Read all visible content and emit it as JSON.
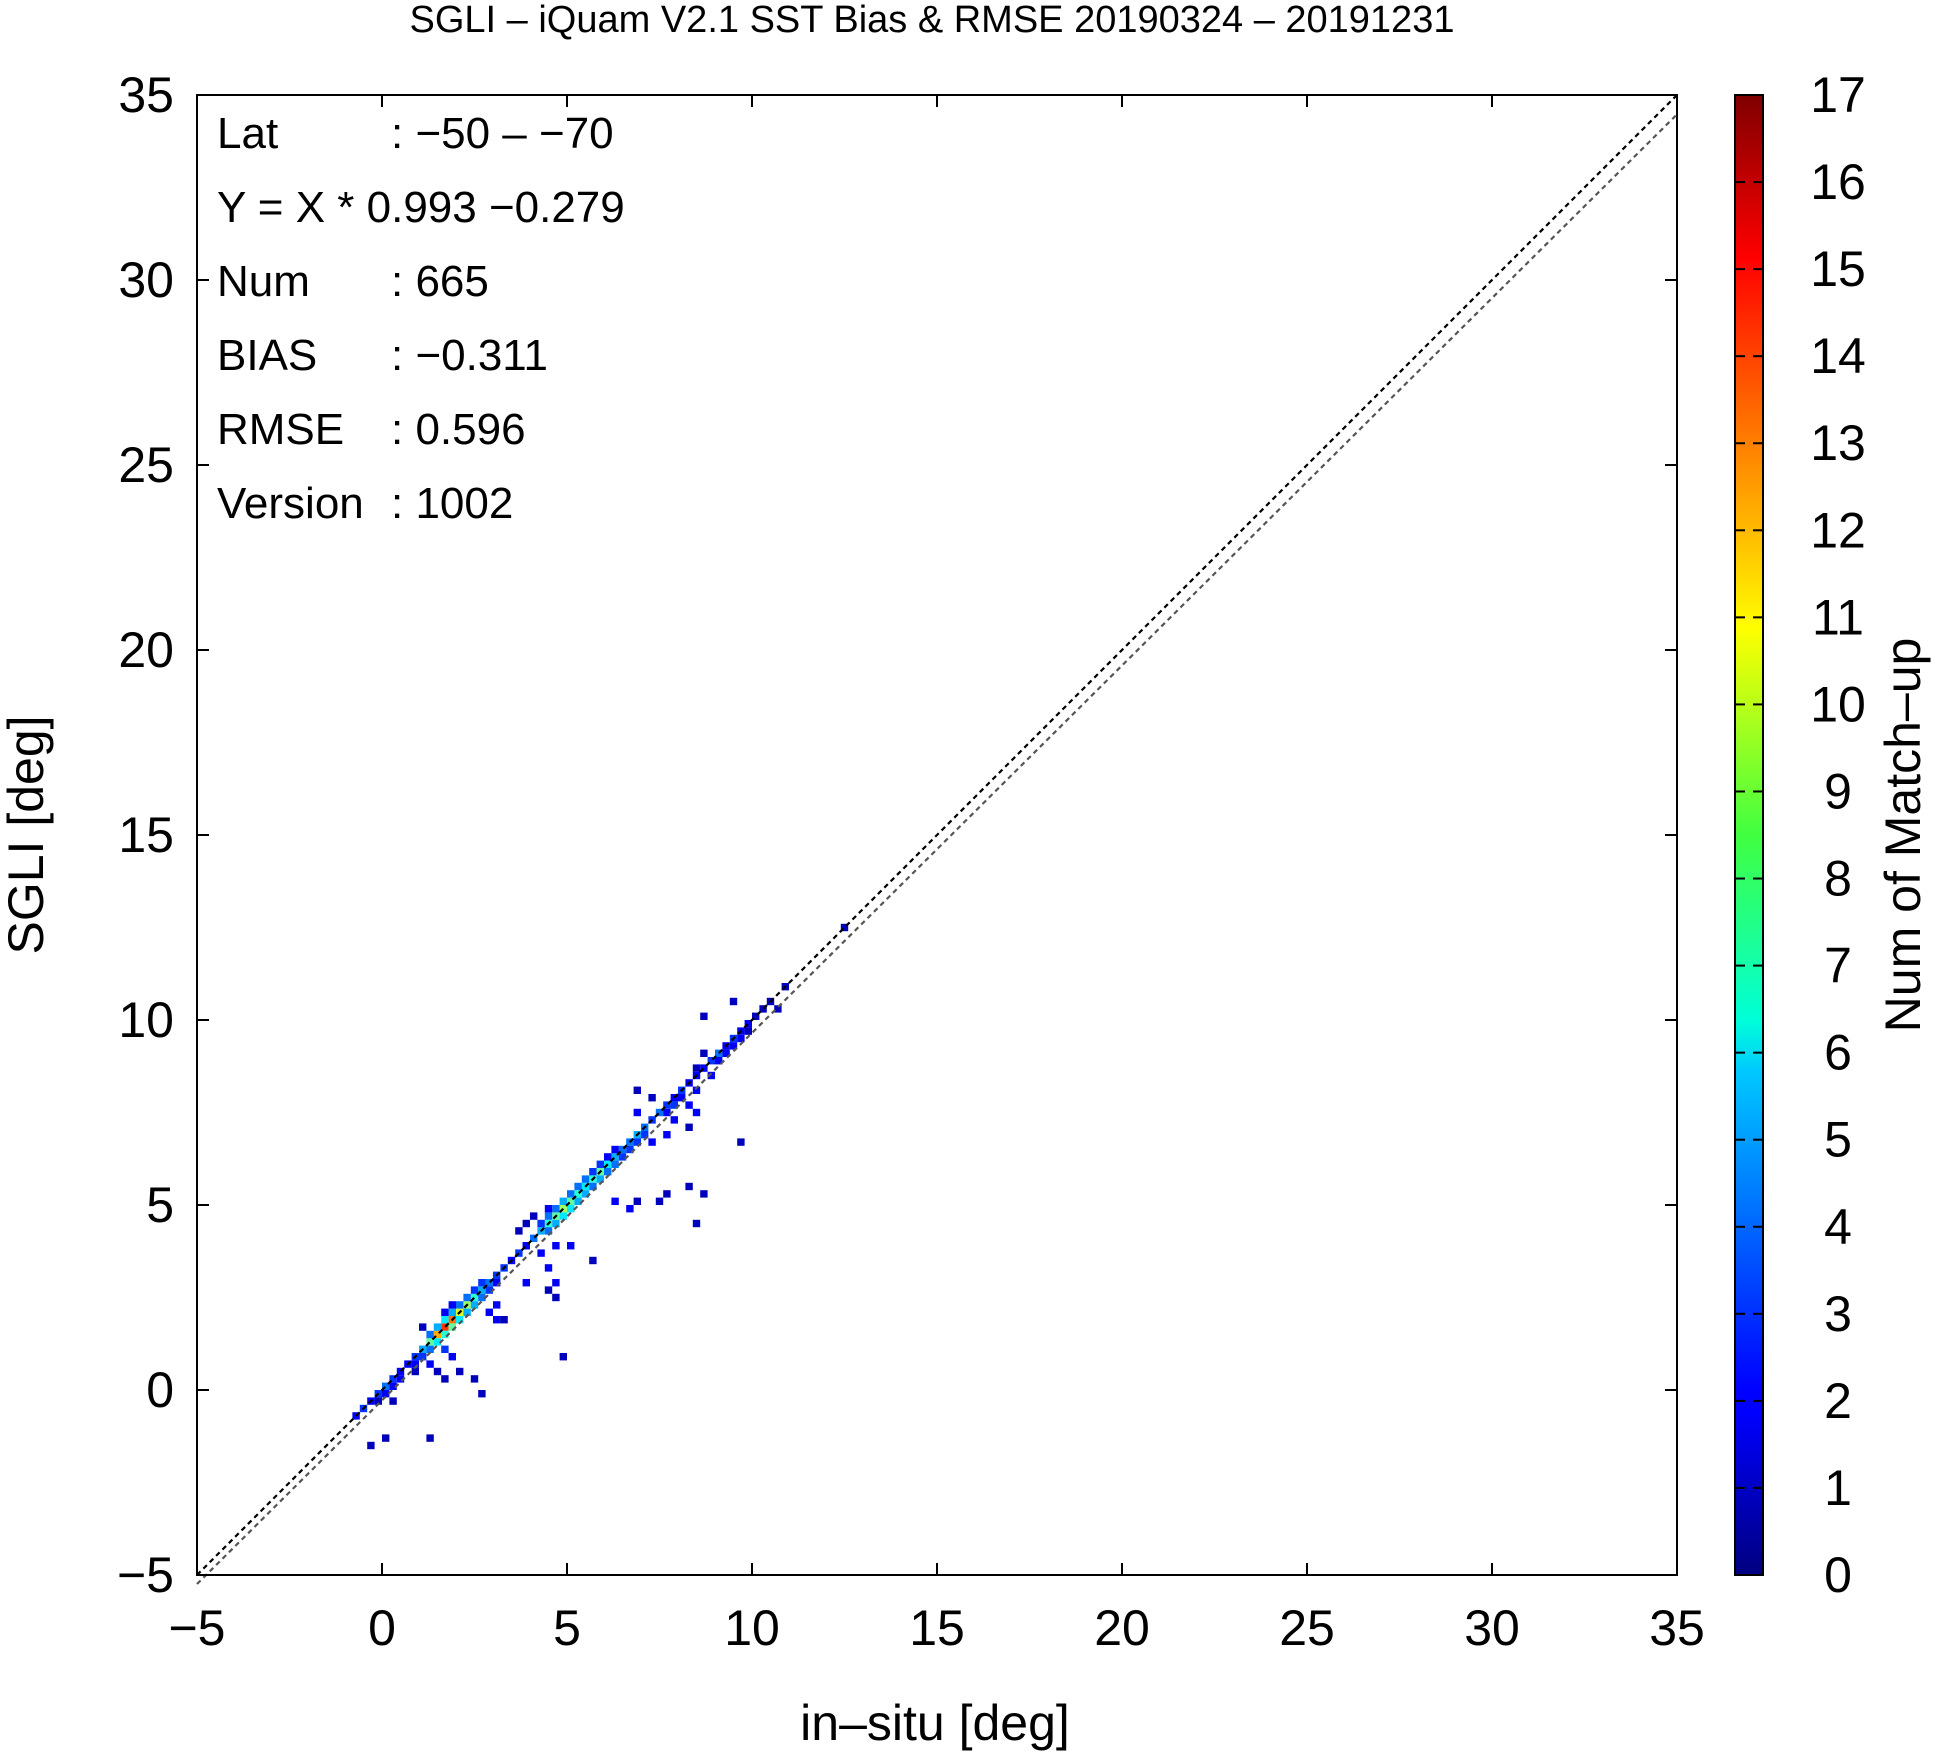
{
  "chart_data": {
    "type": "heatmap",
    "title": "SGLI – iQuam V2.1 SST Bias & RMSE 20190324 – 20191231",
    "xlabel": "in–situ [deg]",
    "ylabel": "SGLI [deg]",
    "colorbar_label": "Num of Match–up",
    "xlim": [
      -5,
      35
    ],
    "ylim": [
      -5,
      35
    ],
    "x_ticks": [
      {
        "value": -5,
        "label": "−5"
      },
      {
        "value": 0,
        "label": "0"
      },
      {
        "value": 5,
        "label": "5"
      },
      {
        "value": 10,
        "label": "10"
      },
      {
        "value": 15,
        "label": "15"
      },
      {
        "value": 20,
        "label": "20"
      },
      {
        "value": 25,
        "label": "25"
      },
      {
        "value": 30,
        "label": "30"
      },
      {
        "value": 35,
        "label": "35"
      }
    ],
    "y_ticks": [
      {
        "value": -5,
        "label": "−5"
      },
      {
        "value": 0,
        "label": "0"
      },
      {
        "value": 5,
        "label": "5"
      },
      {
        "value": 10,
        "label": "10"
      },
      {
        "value": 15,
        "label": "15"
      },
      {
        "value": 20,
        "label": "20"
      },
      {
        "value": 25,
        "label": "25"
      },
      {
        "value": 30,
        "label": "30"
      },
      {
        "value": 35,
        "label": "35"
      }
    ],
    "colorbar_range": [
      0,
      17
    ],
    "colorbar_ticks": [
      "0",
      "1",
      "2",
      "3",
      "4",
      "5",
      "6",
      "7",
      "8",
      "9",
      "10",
      "11",
      "12",
      "13",
      "14",
      "15",
      "16",
      "17"
    ],
    "stats": [
      {
        "label": "Lat",
        "value": ": −50 – −70"
      },
      {
        "label": "Y = X * 0.993 −0.279",
        "value": ""
      },
      {
        "label": "Num",
        "value": ": 665"
      },
      {
        "label": "BIAS",
        "value": ": −0.311"
      },
      {
        "label": "RMSE",
        "value": ": 0.596"
      },
      {
        "label": "Version",
        "value": ": 1002"
      }
    ],
    "reference_lines": [
      {
        "name": "one-to-one",
        "slope": 1.0,
        "intercept": 0.0,
        "color": "#000000"
      },
      {
        "name": "regression",
        "slope": 0.993,
        "intercept": -0.279,
        "color": "#555555"
      }
    ],
    "bin_size": 0.2,
    "cells": [
      [
        -0.8,
        -0.8,
        2
      ],
      [
        -0.6,
        -0.6,
        3
      ],
      [
        -0.4,
        -0.4,
        2
      ],
      [
        -0.2,
        -0.2,
        3
      ],
      [
        0.0,
        0.0,
        4
      ],
      [
        0.2,
        0.2,
        3
      ],
      [
        0.4,
        0.4,
        2
      ],
      [
        0.6,
        0.6,
        2
      ],
      [
        0.8,
        0.8,
        3
      ],
      [
        1.0,
        1.0,
        5
      ],
      [
        1.2,
        1.2,
        8
      ],
      [
        1.4,
        1.4,
        12
      ],
      [
        1.6,
        1.6,
        14
      ],
      [
        1.8,
        1.8,
        13
      ],
      [
        2.0,
        2.0,
        10
      ],
      [
        2.2,
        2.2,
        9
      ],
      [
        2.4,
        2.4,
        7
      ],
      [
        2.6,
        2.6,
        5
      ],
      [
        2.8,
        2.8,
        4
      ],
      [
        3.0,
        3.0,
        3
      ],
      [
        3.2,
        3.2,
        3
      ],
      [
        3.4,
        3.4,
        2
      ],
      [
        3.6,
        3.6,
        3
      ],
      [
        3.8,
        3.8,
        3
      ],
      [
        4.0,
        4.0,
        4
      ],
      [
        4.2,
        4.2,
        5
      ],
      [
        4.4,
        4.4,
        7
      ],
      [
        4.6,
        4.6,
        8
      ],
      [
        4.8,
        4.8,
        9
      ],
      [
        5.0,
        5.0,
        8
      ],
      [
        5.2,
        5.2,
        7
      ],
      [
        5.4,
        5.4,
        6
      ],
      [
        5.6,
        5.6,
        7
      ],
      [
        5.8,
        5.8,
        8
      ],
      [
        6.0,
        6.0,
        6
      ],
      [
        6.2,
        6.2,
        5
      ],
      [
        6.4,
        6.4,
        4
      ],
      [
        6.6,
        6.6,
        4
      ],
      [
        6.8,
        6.8,
        5
      ],
      [
        7.0,
        7.0,
        4
      ],
      [
        7.2,
        7.2,
        3
      ],
      [
        7.4,
        7.4,
        4
      ],
      [
        7.6,
        7.6,
        3
      ],
      [
        7.8,
        7.8,
        2
      ],
      [
        8.0,
        8.0,
        3
      ],
      [
        8.2,
        8.2,
        2
      ],
      [
        8.4,
        8.4,
        2
      ],
      [
        8.6,
        8.6,
        2
      ],
      [
        8.8,
        8.8,
        3
      ],
      [
        9.0,
        9.0,
        4
      ],
      [
        9.2,
        9.2,
        2
      ],
      [
        9.4,
        9.4,
        3
      ],
      [
        9.6,
        9.6,
        2
      ],
      [
        9.8,
        9.8,
        2
      ],
      [
        10.0,
        10.0,
        1
      ],
      [
        10.2,
        10.2,
        1
      ],
      [
        1.2,
        1.0,
        4
      ],
      [
        1.4,
        1.2,
        6
      ],
      [
        1.6,
        1.4,
        7
      ],
      [
        1.8,
        1.6,
        8
      ],
      [
        2.0,
        1.8,
        6
      ],
      [
        2.2,
        2.0,
        5
      ],
      [
        1.0,
        0.8,
        3
      ],
      [
        0.8,
        0.6,
        2
      ],
      [
        1.4,
        1.6,
        5
      ],
      [
        1.6,
        1.8,
        6
      ],
      [
        1.2,
        1.4,
        4
      ],
      [
        1.8,
        2.0,
        5
      ],
      [
        2.0,
        2.2,
        4
      ],
      [
        2.2,
        2.4,
        4
      ],
      [
        2.4,
        2.6,
        3
      ],
      [
        2.6,
        2.8,
        3
      ],
      [
        2.8,
        2.6,
        3
      ],
      [
        3.0,
        2.8,
        2
      ],
      [
        2.6,
        2.4,
        4
      ],
      [
        2.4,
        2.2,
        5
      ],
      [
        0.2,
        0.0,
        2
      ],
      [
        0.4,
        0.2,
        2
      ],
      [
        0.0,
        -0.2,
        2
      ],
      [
        -0.2,
        -0.4,
        1
      ],
      [
        4.4,
        4.2,
        4
      ],
      [
        4.6,
        4.4,
        5
      ],
      [
        4.8,
        4.6,
        6
      ],
      [
        5.0,
        4.8,
        6
      ],
      [
        5.2,
        5.0,
        5
      ],
      [
        5.4,
        5.2,
        5
      ],
      [
        5.6,
        5.4,
        4
      ],
      [
        5.8,
        5.6,
        5
      ],
      [
        4.2,
        4.4,
        3
      ],
      [
        4.4,
        4.6,
        4
      ],
      [
        4.6,
        4.8,
        4
      ],
      [
        4.8,
        5.0,
        5
      ],
      [
        5.0,
        5.2,
        4
      ],
      [
        5.2,
        5.4,
        4
      ],
      [
        5.4,
        5.6,
        4
      ],
      [
        5.6,
        5.8,
        3
      ],
      [
        6.0,
        5.8,
        4
      ],
      [
        6.2,
        6.0,
        4
      ],
      [
        6.4,
        6.2,
        3
      ],
      [
        6.6,
        6.4,
        3
      ],
      [
        6.8,
        6.6,
        3
      ],
      [
        7.0,
        6.8,
        3
      ],
      [
        7.6,
        7.4,
        2
      ],
      [
        7.8,
        7.6,
        3
      ],
      [
        8.0,
        7.8,
        2
      ],
      [
        8.2,
        7.6,
        2
      ],
      [
        8.4,
        8.0,
        2
      ],
      [
        9.0,
        8.8,
        2
      ],
      [
        9.2,
        9.0,
        2
      ],
      [
        9.4,
        9.2,
        2
      ],
      [
        9.6,
        9.4,
        2
      ],
      [
        9.8,
        9.6,
        1
      ],
      [
        1.2,
        0.6,
        2
      ],
      [
        1.4,
        0.4,
        1
      ],
      [
        1.6,
        0.2,
        1
      ],
      [
        1.8,
        0.8,
        2
      ],
      [
        2.0,
        0.4,
        1
      ],
      [
        1.6,
        1.0,
        3
      ],
      [
        2.4,
        0.2,
        1
      ],
      [
        0.8,
        0.4,
        1
      ],
      [
        0.2,
        -0.4,
        1
      ],
      [
        0.0,
        -1.4,
        1
      ],
      [
        -0.4,
        -1.6,
        1
      ],
      [
        1.2,
        -1.4,
        1
      ],
      [
        2.6,
        -0.2,
        1
      ],
      [
        1.0,
        1.6,
        1
      ],
      [
        1.8,
        2.2,
        2
      ],
      [
        1.6,
        2.0,
        2
      ],
      [
        2.8,
        2.0,
        2
      ],
      [
        3.0,
        1.8,
        2
      ],
      [
        3.2,
        1.8,
        1
      ],
      [
        3.0,
        2.2,
        2
      ],
      [
        4.4,
        2.6,
        1
      ],
      [
        4.6,
        2.8,
        2
      ],
      [
        4.6,
        2.4,
        1
      ],
      [
        3.8,
        2.8,
        2
      ],
      [
        4.8,
        0.8,
        1
      ],
      [
        4.4,
        3.2,
        2
      ],
      [
        4.2,
        3.6,
        2
      ],
      [
        3.8,
        3.8,
        2
      ],
      [
        3.6,
        4.2,
        1
      ],
      [
        4.6,
        3.8,
        2
      ],
      [
        5.0,
        3.8,
        2
      ],
      [
        5.6,
        3.4,
        1
      ],
      [
        6.2,
        5.0,
        2
      ],
      [
        6.6,
        4.8,
        2
      ],
      [
        6.8,
        5.0,
        1
      ],
      [
        7.4,
        5.0,
        1
      ],
      [
        8.2,
        5.4,
        1
      ],
      [
        8.6,
        5.2,
        1
      ],
      [
        8.4,
        4.4,
        1
      ],
      [
        7.6,
        5.2,
        1
      ],
      [
        6.8,
        7.4,
        2
      ],
      [
        7.2,
        6.6,
        2
      ],
      [
        7.6,
        6.8,
        2
      ],
      [
        7.8,
        7.2,
        2
      ],
      [
        8.2,
        7.0,
        1
      ],
      [
        8.4,
        7.4,
        2
      ],
      [
        7.2,
        7.8,
        1
      ],
      [
        6.8,
        8.0,
        1
      ],
      [
        8.4,
        8.6,
        1
      ],
      [
        8.6,
        9.0,
        1
      ],
      [
        8.8,
        8.4,
        2
      ],
      [
        9.6,
        6.6,
        1
      ],
      [
        9.4,
        10.4,
        1
      ],
      [
        8.6,
        10.0,
        1
      ],
      [
        10.4,
        10.4,
        1
      ],
      [
        10.6,
        10.2,
        1
      ],
      [
        10.8,
        10.8,
        1
      ],
      [
        12.4,
        12.4,
        1
      ],
      [
        6.0,
        6.2,
        2
      ],
      [
        6.2,
        6.4,
        2
      ],
      [
        5.8,
        6.0,
        3
      ],
      [
        4.0,
        4.6,
        1
      ],
      [
        3.8,
        4.4,
        1
      ],
      [
        4.4,
        4.8,
        2
      ]
    ]
  }
}
